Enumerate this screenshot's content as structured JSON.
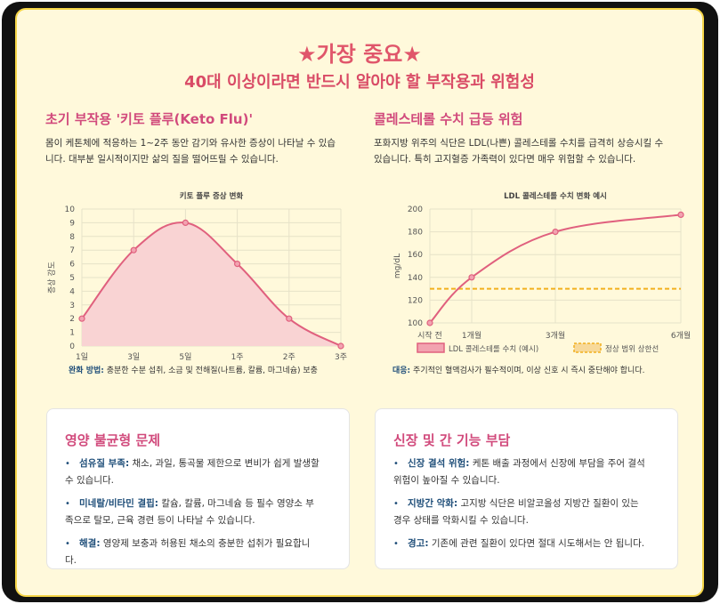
{
  "header": {
    "title": "★가장 중요★",
    "subtitle": "40대 이상이라면 반드시 알아야 할 부작용과 위험성"
  },
  "keto": {
    "title": "초기 부작용 '키토 플루(Keto Flu)'",
    "desc_line1": "몸이 케톤체에 적응하는 1~2주 동안 감기와 유사한 증상이 나타날 수 있습",
    "desc_line2": "니다. 대부분 일시적이지만 삶의 질을 떨어뜨릴 수 있습니다.",
    "note_label": "완화 방법:",
    "note_text": " 충분한 수분 섭취, 소금 및 전해질(나트륨, 칼륨, 마그네슘) 보충"
  },
  "cholesterol": {
    "title": "콜레스테롤 수치 급등 위험",
    "desc_line1": "포화지방 위주의 식단은 LDL(나쁜) 콜레스테롤 수치를 급격히 상승시킬 수",
    "desc_line2": "있습니다. 특히 고지혈증 가족력이 있다면 매우 위험할 수 있습니다.",
    "note_label": "대응:",
    "note_text": " 주기적인 혈액검사가 필수적이며, 이상 신호 시 즉시 중단해야 합니다."
  },
  "chart_data": [
    {
      "type": "area",
      "title": "키토 플루 증상 변화",
      "xlabel": "",
      "ylabel": "증상 강도",
      "categories": [
        "1일",
        "3일",
        "5일",
        "1주",
        "2주",
        "3주"
      ],
      "values": [
        2,
        7,
        9,
        6,
        2,
        0
      ],
      "ylim": [
        0,
        10
      ],
      "yticks": [
        "0",
        "1",
        "2",
        "3",
        "4",
        "5",
        "6",
        "7",
        "8",
        "9",
        "10"
      ],
      "color": "#e0607e",
      "fill": "#f9d3d3"
    },
    {
      "type": "line",
      "title": "LDL 콜레스테롤 수치 변화 예시",
      "xlabel": "",
      "ylabel": "mg/dL",
      "categories": [
        "시작 전",
        "1개월",
        "3개월",
        "6개월"
      ],
      "x": [
        0,
        1,
        3,
        6
      ],
      "ylim": [
        100,
        200
      ],
      "yticks": [
        "100",
        "120",
        "140",
        "160",
        "180",
        "200"
      ],
      "series": [
        {
          "name": "LDL 콜레스테롤 수치 (예시)",
          "values": [
            100,
            140,
            180,
            195
          ],
          "color": "#e0607e"
        },
        {
          "name": "정상 범위 상한선",
          "values": [
            130,
            130,
            130,
            130
          ],
          "color": "#f2b01e",
          "dashed": true
        }
      ],
      "legend": "bottom"
    }
  ],
  "nutrition": {
    "title": "영양 불균형 문제",
    "items": [
      {
        "label": "섬유질 부족:",
        "line1": " 채소, 과일, 통곡물 제한으로 변비가 쉽게 발생할",
        "line2": "수 있습니다."
      },
      {
        "label": "미네랄/비타민 결핍:",
        "line1": " 칼슘, 칼륨, 마그네슘 등 필수 영양소 부",
        "line2": "족으로 탈모, 근육 경련 등이 나타날 수 있습니다."
      },
      {
        "label": "해결:",
        "line1": " 영양제 보충과 허용된 채소의 충분한 섭취가 필요합니",
        "line2": "다."
      }
    ]
  },
  "organ": {
    "title": "신장 및 간 기능 부담",
    "items": [
      {
        "label": "신장 결석 위험:",
        "line1": " 케톤 배출 과정에서 신장에 부담을 주어 결석",
        "line2": "위험이 높아질 수 있습니다."
      },
      {
        "label": "지방간 악화:",
        "line1": " 고지방 식단은 비알코올성 지방간 질환이 있는",
        "line2": "경우 상태를 악화시킬 수 있습니다."
      },
      {
        "label": "경고:",
        "line1": " 기존에 관련 질환이 있다면 절대 시도해서는 안 됩니다.",
        "line2": ""
      }
    ]
  }
}
